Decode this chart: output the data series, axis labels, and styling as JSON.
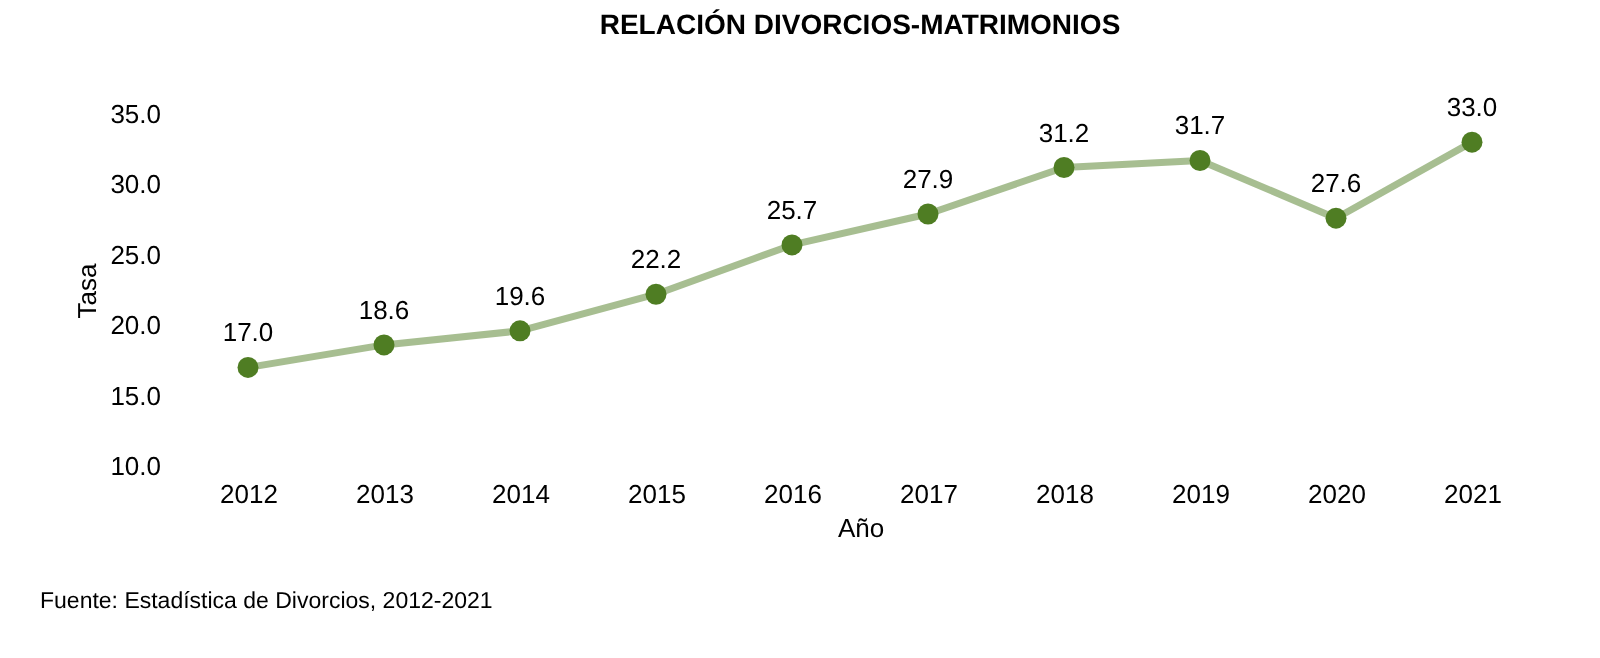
{
  "chart_data": {
    "type": "line",
    "title": "RELACIÓN DIVORCIOS-MATRIMONIOS",
    "xlabel": "Año",
    "ylabel": "Tasa",
    "categories": [
      "2012",
      "2013",
      "2014",
      "2015",
      "2016",
      "2017",
      "2018",
      "2019",
      "2020",
      "2021"
    ],
    "series": [
      {
        "color": "#4f7d23",
        "values": [
          17.0,
          18.6,
          19.6,
          22.2,
          25.7,
          27.9,
          31.2,
          31.7,
          27.6,
          33.0
        ]
      }
    ],
    "ylim": [
      10,
      35
    ],
    "yticks": [
      {
        "value": 10,
        "label": "10.0"
      },
      {
        "value": 15,
        "label": "15.0"
      },
      {
        "value": 20,
        "label": "20.0"
      },
      {
        "value": 25,
        "label": "25.0"
      },
      {
        "value": 30,
        "label": "30.0"
      },
      {
        "value": 35,
        "label": "35.0"
      }
    ],
    "marker": "circle",
    "value_labels": [
      "17.0",
      "18.6",
      "19.6",
      "22.2",
      "25.7",
      "27.9",
      "31.2",
      "31.7",
      "27.6",
      "33.0"
    ],
    "grid": false,
    "legend": false,
    "annotations": [
      "Fuente: Estadística de Divorcios, 2012-2021"
    ]
  }
}
